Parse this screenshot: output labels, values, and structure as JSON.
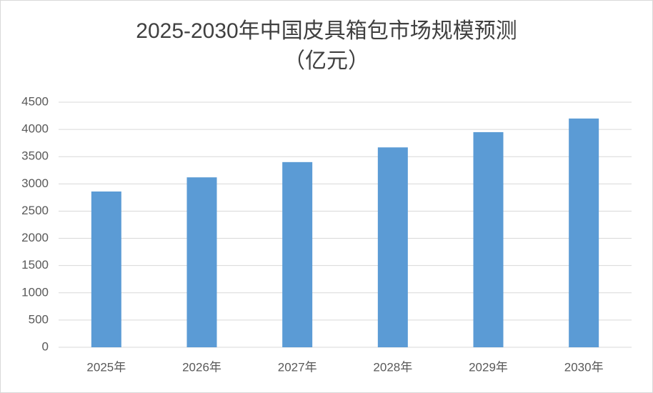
{
  "chart_data": {
    "type": "bar",
    "title": "2025-2030年中国皮具箱包市场规模预测",
    "subtitle": "（亿元）",
    "categories": [
      "2025年",
      "2026年",
      "2027年",
      "2028年",
      "2029年",
      "2030年"
    ],
    "values": [
      2860,
      3120,
      3400,
      3670,
      3950,
      4200
    ],
    "color": "#5b9bd5",
    "ylim": [
      0,
      4500
    ],
    "yticks": [
      0,
      500,
      1000,
      1500,
      2000,
      2500,
      3000,
      3500,
      4000,
      4500
    ],
    "grid": true
  }
}
